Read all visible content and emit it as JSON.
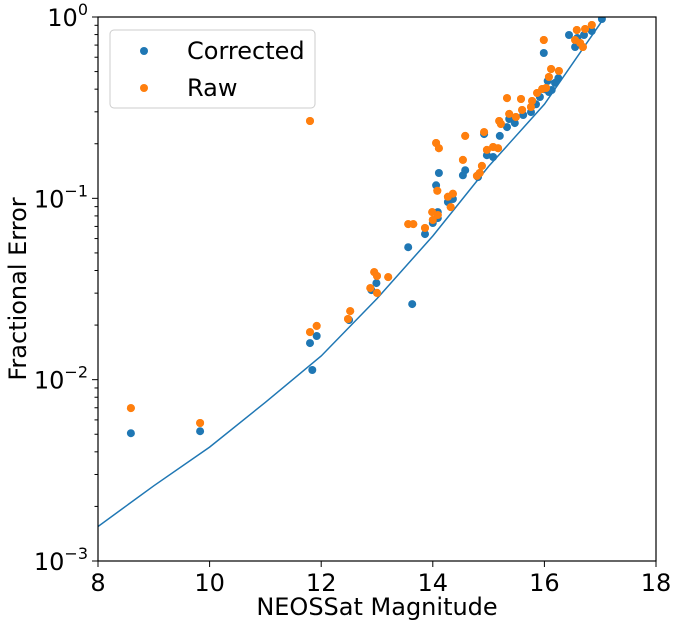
{
  "chart_data": {
    "type": "scatter",
    "title": "",
    "xlabel": "NEOSSat Magnitude",
    "ylabel": "Fractional Error",
    "xlim": [
      8,
      18
    ],
    "ylim": [
      0.001,
      1
    ],
    "yscale": "log",
    "xticks": [
      "8",
      "10",
      "12",
      "14",
      "16",
      "18"
    ],
    "xtick_values": [
      8,
      10,
      12,
      14,
      16,
      18
    ],
    "yticks": [
      {
        "base": "10",
        "exp": "−3",
        "value": 0.001
      },
      {
        "base": "10",
        "exp": "−2",
        "value": 0.01
      },
      {
        "base": "10",
        "exp": "−1",
        "value": 0.1
      },
      {
        "base": "10",
        "exp": "0",
        "value": 1
      }
    ],
    "grid": false,
    "legend_position": "top-left",
    "colors": {
      "Corrected": "#1f77b4",
      "Raw": "#ff7f0e",
      "Model": "#1f77b4"
    },
    "series": [
      {
        "name": "Raw",
        "points": [
          [
            8.59,
            0.00697
          ],
          [
            9.83,
            0.00577
          ],
          [
            11.8,
            0.0183
          ],
          [
            11.92,
            0.0198
          ],
          [
            11.8,
            0.267
          ],
          [
            12.48,
            0.0216
          ],
          [
            12.52,
            0.0239
          ],
          [
            12.88,
            0.032
          ],
          [
            12.95,
            0.0392
          ],
          [
            13.0,
            0.0373
          ],
          [
            13.0,
            0.0301
          ],
          [
            13.2,
            0.0368
          ],
          [
            13.56,
            0.0721
          ],
          [
            13.65,
            0.0721
          ],
          [
            13.86,
            0.0686
          ],
          [
            13.99,
            0.084
          ],
          [
            14.0,
            0.0759
          ],
          [
            14.09,
            0.0809
          ],
          [
            14.08,
            0.11
          ],
          [
            14.06,
            0.202
          ],
          [
            14.11,
            0.189
          ],
          [
            14.27,
            0.102
          ],
          [
            14.36,
            0.106
          ],
          [
            14.32,
            0.0895
          ],
          [
            14.54,
            0.163
          ],
          [
            14.58,
            0.221
          ],
          [
            14.79,
            0.133
          ],
          [
            14.84,
            0.138
          ],
          [
            14.88,
            0.151
          ],
          [
            14.92,
            0.232
          ],
          [
            14.97,
            0.185
          ],
          [
            15.08,
            0.192
          ],
          [
            15.17,
            0.189
          ],
          [
            15.19,
            0.267
          ],
          [
            15.22,
            0.257
          ],
          [
            15.37,
            0.292
          ],
          [
            15.33,
            0.357
          ],
          [
            15.49,
            0.281
          ],
          [
            15.58,
            0.353
          ],
          [
            15.6,
            0.307
          ],
          [
            15.76,
            0.319
          ],
          [
            15.78,
            0.344
          ],
          [
            15.87,
            0.381
          ],
          [
            15.96,
            0.401
          ],
          [
            16.03,
            0.406
          ],
          [
            16.08,
            0.467
          ],
          [
            16.12,
            0.517
          ],
          [
            16.26,
            0.504
          ],
          [
            15.99,
            0.747
          ],
          [
            16.58,
            0.848
          ],
          [
            16.73,
            0.859
          ],
          [
            16.85,
            0.903
          ],
          [
            16.55,
            0.747
          ],
          [
            16.64,
            0.719
          ],
          [
            16.69,
            0.683
          ]
        ]
      },
      {
        "name": "Corrected",
        "points": [
          [
            8.59,
            0.00507
          ],
          [
            9.83,
            0.0052
          ],
          [
            11.8,
            0.0159
          ],
          [
            11.92,
            0.0174
          ],
          [
            11.84,
            0.0113
          ],
          [
            12.5,
            0.0213
          ],
          [
            12.9,
            0.0312
          ],
          [
            12.99,
            0.0341
          ],
          [
            13.56,
            0.0538
          ],
          [
            13.63,
            0.0261
          ],
          [
            13.86,
            0.0635
          ],
          [
            14.0,
            0.0731
          ],
          [
            14.09,
            0.0778
          ],
          [
            14.09,
            0.084
          ],
          [
            14.06,
            0.118
          ],
          [
            14.11,
            0.138
          ],
          [
            14.27,
            0.0954
          ],
          [
            14.36,
            0.0991
          ],
          [
            14.54,
            0.134
          ],
          [
            14.58,
            0.143
          ],
          [
            14.81,
            0.131
          ],
          [
            14.97,
            0.173
          ],
          [
            15.08,
            0.169
          ],
          [
            14.92,
            0.226
          ],
          [
            15.2,
            0.221
          ],
          [
            15.33,
            0.247
          ],
          [
            15.37,
            0.274
          ],
          [
            15.47,
            0.26
          ],
          [
            15.62,
            0.288
          ],
          [
            15.76,
            0.299
          ],
          [
            15.85,
            0.33
          ],
          [
            15.92,
            0.362
          ],
          [
            16.0,
            0.4
          ],
          [
            16.08,
            0.386
          ],
          [
            16.13,
            0.396
          ],
          [
            16.06,
            0.444
          ],
          [
            16.19,
            0.433
          ],
          [
            16.25,
            0.46
          ],
          [
            15.99,
            0.633
          ],
          [
            16.44,
            0.796
          ],
          [
            16.55,
            0.683
          ],
          [
            16.59,
            0.766
          ],
          [
            16.71,
            0.796
          ],
          [
            16.85,
            0.837
          ],
          [
            17.03,
            0.975
          ]
        ]
      }
    ],
    "model_curve": {
      "name": "Model",
      "x": [
        8,
        9,
        10,
        11,
        12,
        13,
        14,
        15,
        16,
        17,
        17.1
      ],
      "y": [
        0.00155,
        0.0026,
        0.00425,
        0.0075,
        0.0135,
        0.028,
        0.062,
        0.15,
        0.33,
        0.92,
        1.05
      ]
    },
    "legend": [
      {
        "label": "Corrected",
        "series": "Corrected"
      },
      {
        "label": "Raw",
        "series": "Raw"
      }
    ]
  }
}
